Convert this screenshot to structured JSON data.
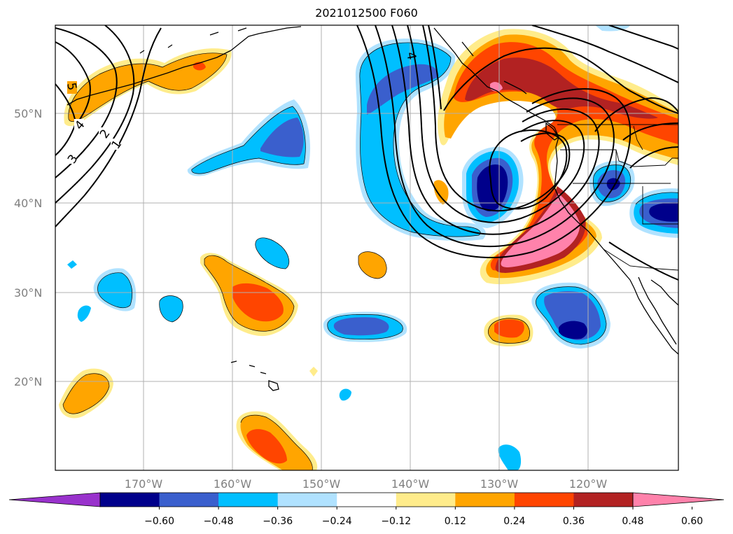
{
  "title": "2021012500 F060",
  "lat_labels": [
    "50°N",
    "40°N",
    "30°N",
    "20°N"
  ],
  "lon_labels": [
    "170°W",
    "160°W",
    "150°W",
    "140°W",
    "130°W",
    "120°W"
  ],
  "contour_labels": [
    "5",
    "4",
    "3",
    "2",
    "1",
    "4"
  ],
  "colorbar": {
    "ticks": [
      "−0.60",
      "−0.48",
      "−0.36",
      "−0.24",
      "−0.12",
      "0.12",
      "0.24",
      "0.36",
      "0.48",
      "0.60"
    ],
    "colors": [
      "#9932cc",
      "#00008b",
      "#3a5fcd",
      "#00bfff",
      "#b0e2ff",
      "#ffffff",
      "#ffec8b",
      "#ffa500",
      "#ff4500",
      "#b22222",
      "#ff82ab"
    ]
  }
}
